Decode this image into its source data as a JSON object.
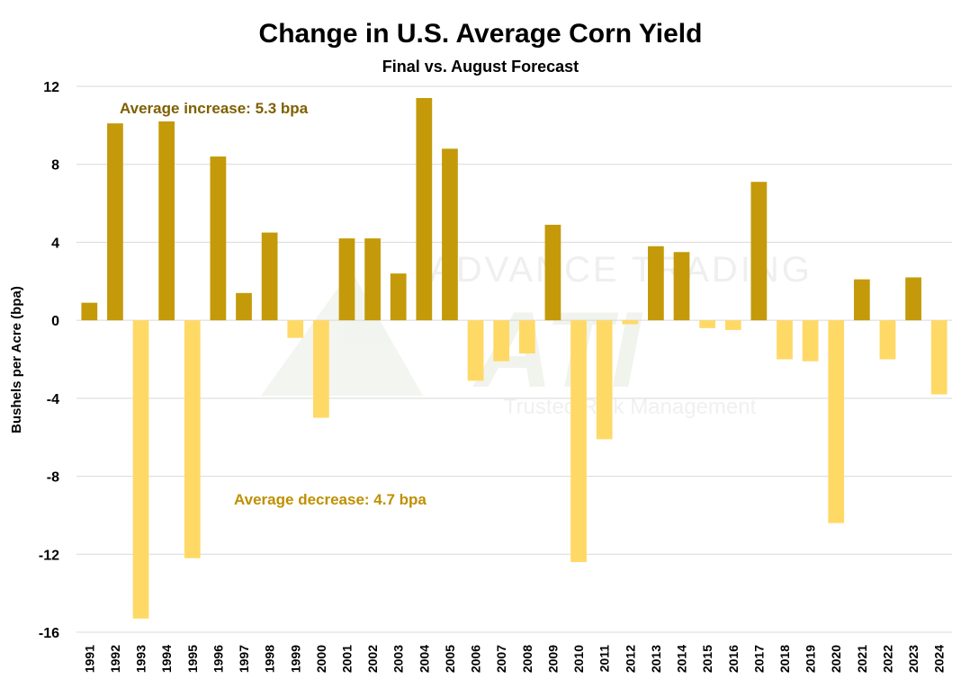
{
  "chart_data": {
    "type": "bar",
    "title": "Change in U.S. Average Corn Yield",
    "subtitle": "Final vs. August Forecast",
    "xlabel": "",
    "ylabel": "Bushels per Acre (bpa)",
    "ylim": [
      -16,
      12
    ],
    "yticks": [
      12,
      8,
      4,
      0,
      -4,
      -8,
      -12,
      -16
    ],
    "grid": true,
    "categories": [
      "1991",
      "1992",
      "1993",
      "1994",
      "1995",
      "1996",
      "1997",
      "1998",
      "1999",
      "2000",
      "2001",
      "2002",
      "2003",
      "2004",
      "2005",
      "2006",
      "2007",
      "2008",
      "2009",
      "2010",
      "2011",
      "2012",
      "2013",
      "2014",
      "2015",
      "2016",
      "2017",
      "2018",
      "2019",
      "2020",
      "2021",
      "2022",
      "2023",
      "2024"
    ],
    "values": [
      0.9,
      10.1,
      -15.3,
      10.2,
      -12.2,
      8.4,
      1.4,
      4.5,
      -0.9,
      -5.0,
      4.2,
      4.2,
      2.4,
      11.4,
      8.8,
      -3.1,
      -2.1,
      -1.7,
      4.9,
      -12.4,
      -6.1,
      -0.2,
      3.8,
      3.5,
      -0.4,
      -0.5,
      7.1,
      -2.0,
      -2.1,
      -10.4,
      2.1,
      -2.0,
      2.2,
      -3.8
    ],
    "colors": {
      "positive": "#C49A0A",
      "negative": "#FFD966"
    },
    "annotations": [
      {
        "text": "Average increase: 5.3 bpa",
        "color": "#7F6000"
      },
      {
        "text": "Average decrease: 4.7 bpa",
        "color": "#BF9000"
      }
    ]
  },
  "watermark": {
    "brand": "ADVANCE TRADING",
    "logo": "ATI",
    "tagline": "Trusted Risk Management"
  }
}
